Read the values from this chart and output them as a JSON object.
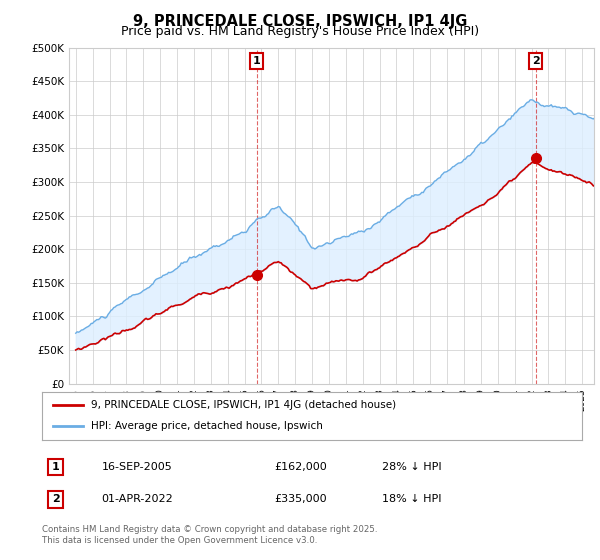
{
  "title": "9, PRINCEDALE CLOSE, IPSWICH, IP1 4JG",
  "subtitle": "Price paid vs. HM Land Registry's House Price Index (HPI)",
  "ylim": [
    0,
    500000
  ],
  "yticks": [
    0,
    50000,
    100000,
    150000,
    200000,
    250000,
    300000,
    350000,
    400000,
    450000,
    500000
  ],
  "ytick_labels": [
    "£0",
    "£50K",
    "£100K",
    "£150K",
    "£200K",
    "£250K",
    "£300K",
    "£350K",
    "£400K",
    "£450K",
    "£500K"
  ],
  "hpi_color": "#6aade4",
  "hpi_fill_color": "#ddeeff",
  "price_color": "#cc0000",
  "marker1_x": 2005.72,
  "marker2_x": 2022.25,
  "marker1_price": 162000,
  "marker2_price": 335000,
  "legend_label1": "9, PRINCEDALE CLOSE, IPSWICH, IP1 4JG (detached house)",
  "legend_label2": "HPI: Average price, detached house, Ipswich",
  "table_row1": [
    "1",
    "16-SEP-2005",
    "£162,000",
    "28% ↓ HPI"
  ],
  "table_row2": [
    "2",
    "01-APR-2022",
    "£335,000",
    "18% ↓ HPI"
  ],
  "footer": "Contains HM Land Registry data © Crown copyright and database right 2025.\nThis data is licensed under the Open Government Licence v3.0.",
  "bg_color": "#ffffff",
  "grid_color": "#cccccc",
  "title_fontsize": 10.5,
  "subtitle_fontsize": 9
}
